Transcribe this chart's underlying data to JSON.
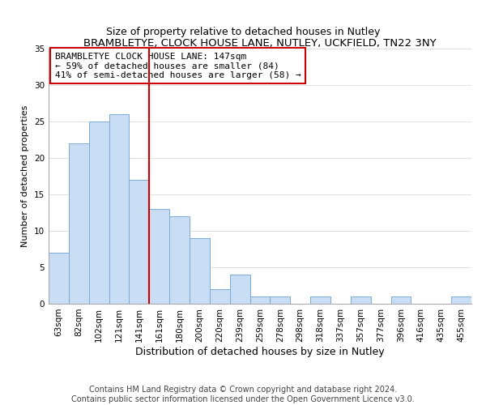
{
  "title": "BRAMBLETYE, CLOCK HOUSE LANE, NUTLEY, UCKFIELD, TN22 3NY",
  "subtitle": "Size of property relative to detached houses in Nutley",
  "xlabel": "Distribution of detached houses by size in Nutley",
  "ylabel": "Number of detached properties",
  "bar_labels": [
    "63sqm",
    "82sqm",
    "102sqm",
    "121sqm",
    "141sqm",
    "161sqm",
    "180sqm",
    "200sqm",
    "220sqm",
    "239sqm",
    "259sqm",
    "278sqm",
    "298sqm",
    "318sqm",
    "337sqm",
    "357sqm",
    "377sqm",
    "396sqm",
    "416sqm",
    "435sqm",
    "455sqm"
  ],
  "bar_values": [
    7,
    22,
    25,
    26,
    17,
    13,
    12,
    9,
    2,
    4,
    1,
    1,
    0,
    1,
    0,
    1,
    0,
    1,
    0,
    0,
    1
  ],
  "bar_color": "#c9ddf5",
  "bar_edge_color": "#7baad4",
  "reference_line_x": 4.5,
  "reference_line_color": "#cc0000",
  "annotation_text": "BRAMBLETYE CLOCK HOUSE LANE: 147sqm\n← 59% of detached houses are smaller (84)\n41% of semi-detached houses are larger (58) →",
  "annotation_box_color": "#ffffff",
  "annotation_box_edge": "#cc0000",
  "ylim": [
    0,
    35
  ],
  "yticks": [
    0,
    5,
    10,
    15,
    20,
    25,
    30,
    35
  ],
  "footer": "Contains HM Land Registry data © Crown copyright and database right 2024.\nContains public sector information licensed under the Open Government Licence v3.0.",
  "title_fontsize": 9.5,
  "subtitle_fontsize": 9,
  "xlabel_fontsize": 9,
  "ylabel_fontsize": 8,
  "tick_fontsize": 7.5,
  "annotation_fontsize": 8,
  "footer_fontsize": 7
}
